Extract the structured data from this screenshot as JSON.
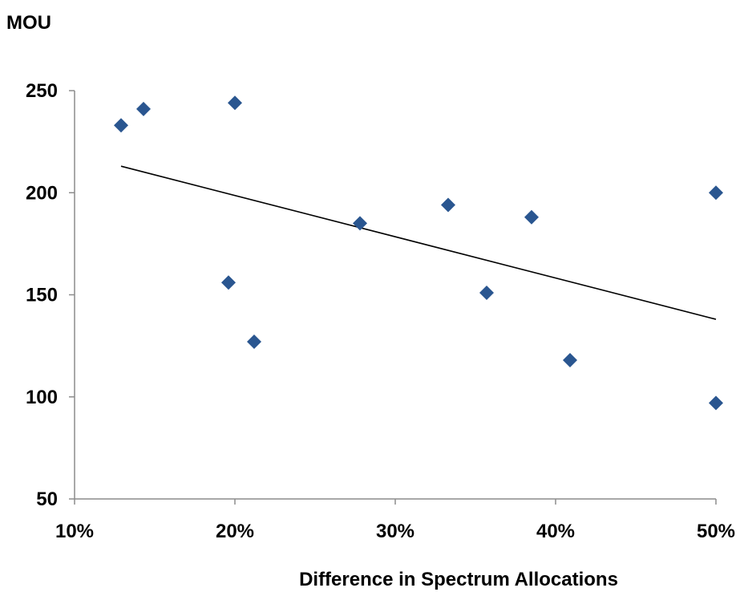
{
  "chart_data": {
    "type": "scatter",
    "ylabel": "MOU",
    "xlabel": "Difference in Spectrum Allocations",
    "xlim": [
      0.1,
      0.5
    ],
    "ylim": [
      50,
      250
    ],
    "x_ticks": [
      {
        "value": 0.1,
        "label": "10%"
      },
      {
        "value": 0.2,
        "label": "20%"
      },
      {
        "value": 0.3,
        "label": "30%"
      },
      {
        "value": 0.4,
        "label": "40%"
      },
      {
        "value": 0.5,
        "label": "50%"
      }
    ],
    "y_ticks": [
      {
        "value": 50,
        "label": "50"
      },
      {
        "value": 100,
        "label": "100"
      },
      {
        "value": 150,
        "label": "150"
      },
      {
        "value": 200,
        "label": "200"
      },
      {
        "value": 250,
        "label": "250"
      }
    ],
    "grid": false,
    "marker": "diamond",
    "series": [
      {
        "color": "#2a5690",
        "points": [
          {
            "x": 0.129,
            "y": 233
          },
          {
            "x": 0.143,
            "y": 241
          },
          {
            "x": 0.2,
            "y": 244
          },
          {
            "x": 0.196,
            "y": 156
          },
          {
            "x": 0.212,
            "y": 127
          },
          {
            "x": 0.278,
            "y": 185
          },
          {
            "x": 0.333,
            "y": 194
          },
          {
            "x": 0.357,
            "y": 151
          },
          {
            "x": 0.385,
            "y": 188
          },
          {
            "x": 0.409,
            "y": 118
          },
          {
            "x": 0.5,
            "y": 200
          },
          {
            "x": 0.5,
            "y": 97
          }
        ]
      }
    ],
    "trendline": {
      "type": "linear",
      "color": "#000000",
      "from": {
        "x": 0.129,
        "y": 213
      },
      "to": {
        "x": 0.5,
        "y": 138
      }
    }
  }
}
